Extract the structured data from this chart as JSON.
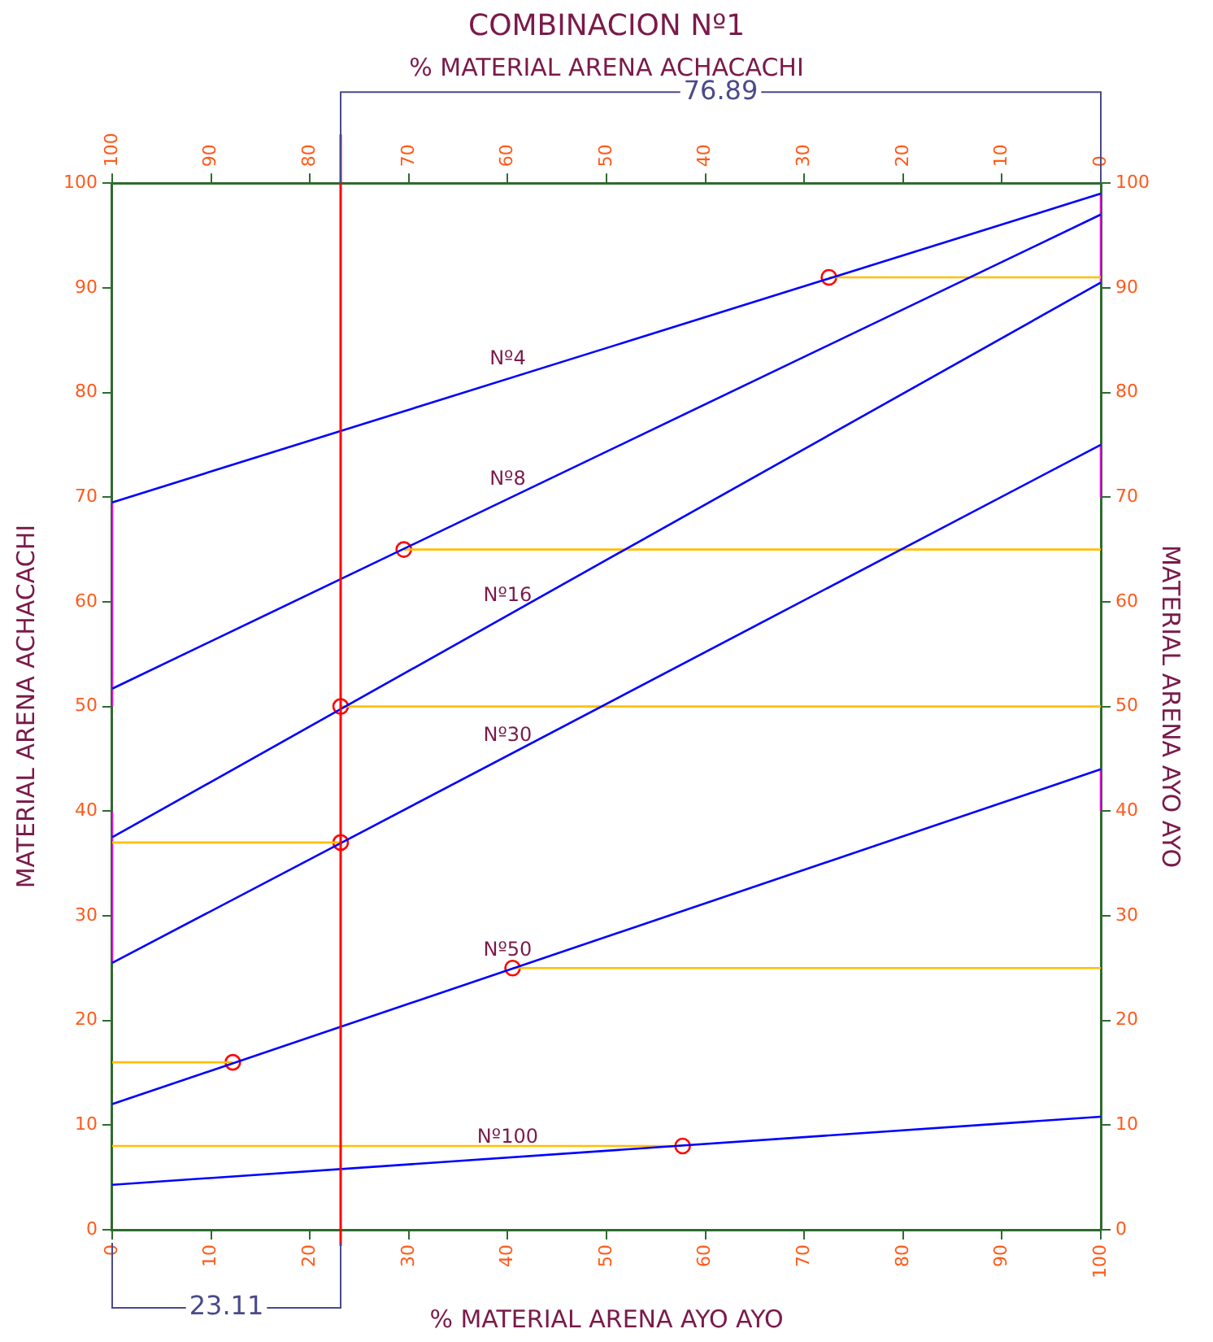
{
  "chart_data": {
    "type": "line",
    "title": "COMBINACION Nº1",
    "xlabel": "% MATERIAL ARENA AYO AYO",
    "x2label": "% MATERIAL ARENA ACHACACHI",
    "ylabel": "MATERIAL ARENA ACHACACHI",
    "y2label": "MATERIAL ARENA AYO AYO",
    "xlim": [
      0,
      100
    ],
    "xticks": [
      0,
      10,
      20,
      30,
      40,
      50,
      60,
      70,
      80,
      90,
      100
    ],
    "x2lim": [
      100,
      0
    ],
    "x2ticks": [
      100,
      90,
      80,
      70,
      60,
      50,
      40,
      30,
      20,
      10,
      0
    ],
    "ylim": [
      0,
      100
    ],
    "yticks": [
      0,
      10,
      20,
      30,
      40,
      50,
      60,
      70,
      80,
      90,
      100
    ],
    "y2lim": [
      0,
      100
    ],
    "y2ticks": [
      0,
      10,
      20,
      30,
      40,
      50,
      60,
      70,
      80,
      90,
      100
    ],
    "grid": false,
    "legend": false,
    "ref_lines": [
      {
        "axis": "x",
        "value": 23.11,
        "color": "#ff0000"
      }
    ],
    "annotations": [
      "23.11",
      {
        "text": "76.89",
        "x": 23.11,
        "y": 100
      }
    ],
    "series": [
      {
        "name": "Nº4",
        "color": "#0000ff",
        "x": [
          0,
          100
        ],
        "values": [
          69.5,
          99
        ]
      },
      {
        "name": "Nº8",
        "color": "#0000ff",
        "x": [
          0,
          100
        ],
        "values": [
          51.7,
          97
        ]
      },
      {
        "name": "Nº16",
        "color": "#0000ff",
        "x": [
          0,
          100
        ],
        "values": [
          37.5,
          90.5
        ]
      },
      {
        "name": "Nº30",
        "color": "#0000ff",
        "x": [
          0,
          100
        ],
        "values": [
          25.5,
          75
        ]
      },
      {
        "name": "Nº50",
        "color": "#0000ff",
        "x": [
          0,
          100
        ],
        "values": [
          12,
          44
        ]
      },
      {
        "name": "Nº100",
        "color": "#0000ff",
        "x": [
          0,
          100
        ],
        "values": [
          4.3,
          10.8
        ]
      },
      {
        "type": "line",
        "color": "#ffc000",
        "x": [
          72.5,
          100
        ],
        "values": [
          91,
          91
        ]
      },
      {
        "type": "line",
        "color": "#ffc000",
        "x": [
          29.5,
          100
        ],
        "values": [
          65,
          65
        ]
      },
      {
        "type": "line",
        "color": "#ffc000",
        "x": [
          23.11,
          100
        ],
        "values": [
          50,
          50
        ]
      },
      {
        "type": "line",
        "color": "#ffc000",
        "x": [
          0,
          23.11
        ],
        "values": [
          37,
          37
        ]
      },
      {
        "type": "line",
        "color": "#ffc000",
        "x": [
          40.5,
          100
        ],
        "values": [
          25,
          25
        ]
      },
      {
        "type": "line",
        "color": "#ffc000",
        "x": [
          0,
          12.2
        ],
        "values": [
          16,
          16
        ]
      },
      {
        "type": "line",
        "color": "#ffc000",
        "x": [
          0,
          57.7
        ],
        "values": [
          8,
          8
        ]
      },
      {
        "type": "line",
        "color": "#ff00ff",
        "x": [
          0,
          0
        ],
        "values": [
          50,
          69.5
        ]
      },
      {
        "type": "line",
        "color": "#ff00ff",
        "x": [
          0,
          0
        ],
        "values": [
          25.5,
          40
        ]
      },
      {
        "type": "line",
        "color": "#ff00ff",
        "x": [
          100,
          100
        ],
        "values": [
          90.5,
          99
        ]
      },
      {
        "type": "line",
        "color": "#ff00ff",
        "x": [
          100,
          100
        ],
        "values": [
          70,
          75
        ]
      },
      {
        "type": "line",
        "color": "#ff00ff",
        "x": [
          100,
          100
        ],
        "values": [
          40,
          44
        ]
      },
      {
        "type": "scatter",
        "marker": "circle",
        "color": "#ff0000",
        "x": [
          72.5,
          29.5,
          23.11,
          23.11,
          40.5,
          12.2,
          57.7
        ],
        "values": [
          91,
          65,
          50,
          37,
          25,
          16,
          8
        ]
      }
    ]
  }
}
